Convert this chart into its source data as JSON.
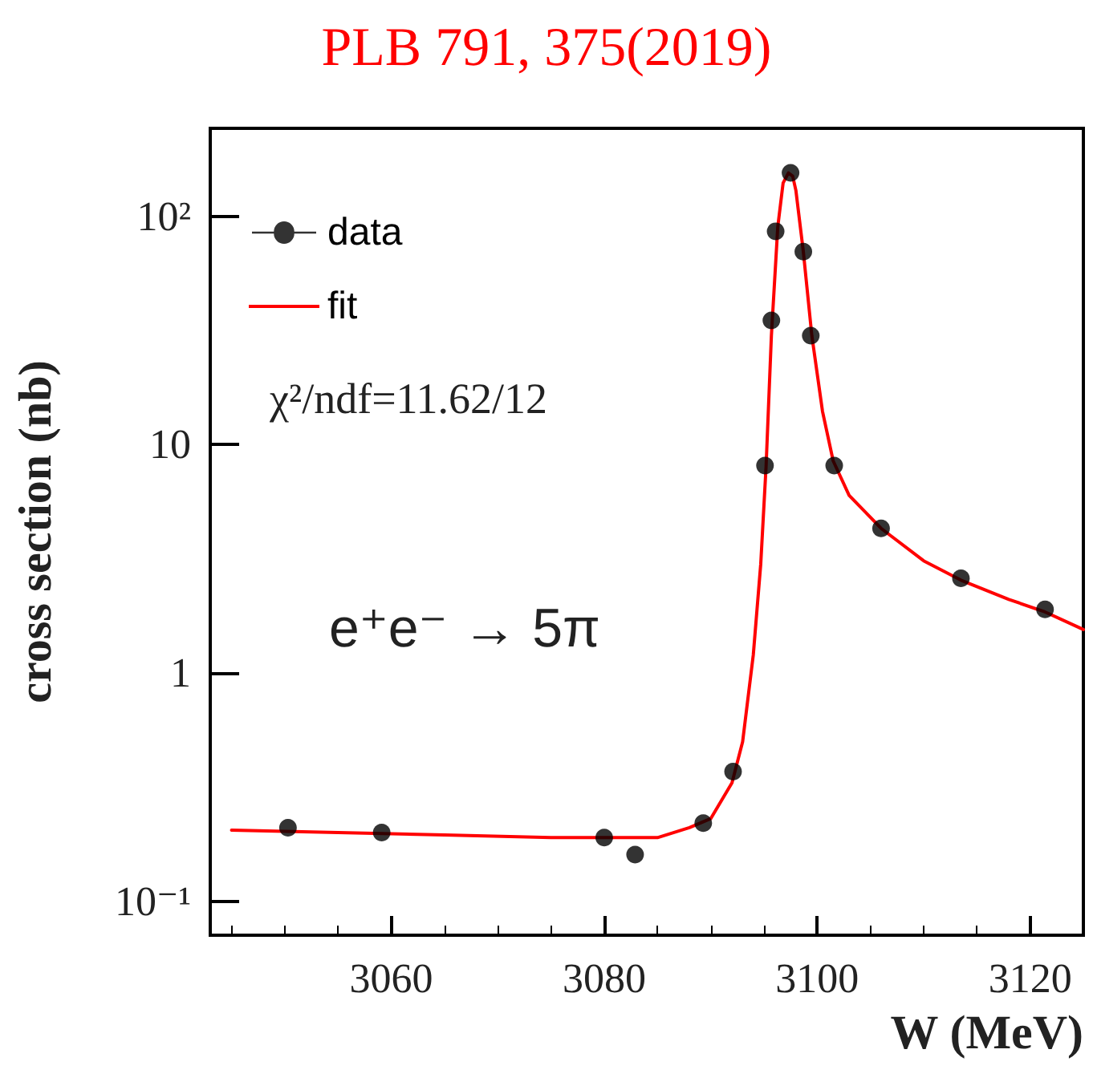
{
  "chart_data": {
    "type": "scatter",
    "title": "PLB 791, 375(2019)",
    "xlabel": "W (MeV)",
    "ylabel": "cross section (nb)",
    "annotations": [
      "χ²/ndf=11.62/12",
      "e⁺e⁻ → 5π"
    ],
    "log": "y",
    "xlim": [
      3043,
      3125
    ],
    "ylim": [
      0.071,
      243
    ],
    "xticks": [
      3060,
      3080,
      3100,
      3120
    ],
    "yticks": [
      {
        "value": 0.1,
        "label": "10⁻¹"
      },
      1,
      10,
      {
        "value": 100,
        "label": "10²"
      }
    ],
    "legend": "top left",
    "grid": false,
    "series": [
      {
        "name": "data",
        "color": "#000000",
        "marker": "circle",
        "x": [
          3050.3,
          3059.1,
          3080.0,
          3082.9,
          3089.3,
          3092.1,
          3095.1,
          3095.7,
          3096.1,
          3097.5,
          3098.7,
          3099.4,
          3101.6,
          3106.0,
          3113.5,
          3121.4
        ],
        "values": [
          0.21,
          0.2,
          0.19,
          0.16,
          0.22,
          0.37,
          8.1,
          35,
          86,
          155,
          70,
          30,
          8.1,
          4.3,
          2.6,
          1.9
        ]
      },
      {
        "name": "fit",
        "type": "line",
        "color": "#ff0000",
        "marker": "none",
        "x": [
          3045,
          3055,
          3065,
          3075,
          3085,
          3088,
          3090,
          3092,
          3093,
          3094,
          3094.7,
          3095.2,
          3095.7,
          3096.3,
          3096.8,
          3097.3,
          3097.7,
          3098,
          3098.7,
          3099.5,
          3100.5,
          3101.5,
          3103,
          3106,
          3110,
          3113.5,
          3118,
          3121.4,
          3125
        ],
        "values": [
          0.205,
          0.2,
          0.195,
          0.19,
          0.19,
          0.21,
          0.23,
          0.33,
          0.5,
          1.2,
          3,
          8,
          30,
          90,
          140,
          155,
          150,
          130,
          70,
          30,
          14,
          8.5,
          6,
          4.3,
          3.1,
          2.55,
          2.1,
          1.85,
          1.55
        ]
      }
    ]
  }
}
